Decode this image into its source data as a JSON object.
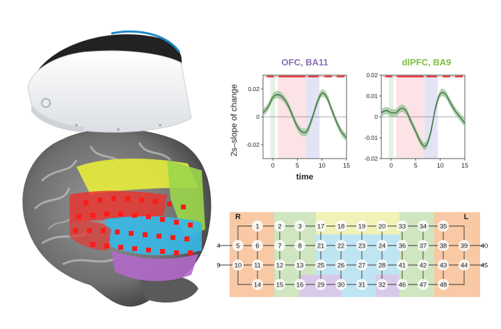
{
  "charts": {
    "ylabel": "2s–slope of change",
    "xlabel": "time",
    "left": {
      "title": "OFC, BA11",
      "title_color": "#8a6fb5",
      "ylim": [
        -0.03,
        0.03
      ],
      "yticks": [
        "0.02",
        "0",
        "-0.02"
      ],
      "ytick_values": [
        0.02,
        0,
        -0.02
      ],
      "xticks": [
        "0",
        "5",
        "10",
        "15"
      ],
      "xtick_values": [
        0,
        5,
        10,
        15
      ]
    },
    "right": {
      "title": "dlPFC, BA9",
      "title_color": "#7fbf3f",
      "ylim": [
        -0.02,
        0.02
      ],
      "yticks": [
        "0.02",
        "0.01",
        "0",
        "-0.01",
        "-0.02"
      ],
      "ytick_values": [
        0.02,
        0.01,
        0,
        -0.01,
        -0.02
      ],
      "xticks": [
        "0",
        "5",
        "10",
        "15"
      ],
      "xtick_values": [
        0,
        5,
        10,
        15
      ]
    }
  },
  "chart_data": [
    {
      "type": "line",
      "title": "OFC, BA11",
      "xlabel": "time",
      "ylabel": "2s–slope of change",
      "xlim": [
        -2,
        15
      ],
      "ylim": [
        -0.03,
        0.03
      ],
      "x": [
        -2,
        -1,
        0,
        1,
        2,
        3,
        4,
        5,
        6,
        7,
        8,
        9,
        10,
        11,
        12,
        13,
        14,
        15
      ],
      "series": [
        {
          "values": [
            0.003,
            0.007,
            0.014,
            0.016,
            0.014,
            0.009,
            0.001,
            -0.007,
            -0.011,
            -0.01,
            -0.001,
            0.01,
            0.017,
            0.014,
            0.005,
            -0.004,
            -0.011,
            -0.015
          ]
        }
      ],
      "shaded_regions": [
        [
          -0.5,
          0.5,
          "#e4f2e4"
        ],
        [
          1,
          6.8,
          "#fbe3e6"
        ],
        [
          6.8,
          9.5,
          "#e2e4f6"
        ]
      ],
      "significance_bar_color": "#e63a3a"
    },
    {
      "type": "line",
      "title": "dlPFC, BA9",
      "xlabel": "",
      "ylabel": "",
      "xlim": [
        -2,
        15
      ],
      "ylim": [
        -0.02,
        0.02
      ],
      "x": [
        -2,
        -1,
        0,
        1,
        2,
        3,
        4,
        5,
        6,
        7,
        8,
        9,
        10,
        11,
        12,
        13,
        14,
        15
      ],
      "series": [
        {
          "values": [
            0.002,
            0.003,
            0.002,
            0.002,
            0.004,
            0.003,
            -0.002,
            -0.007,
            -0.012,
            -0.014,
            -0.008,
            0.004,
            0.011,
            0.011,
            0.007,
            0.003,
            0.0,
            -0.003
          ]
        }
      ],
      "shaded_regions": [
        [
          -0.5,
          0.5,
          "#e4f2e4"
        ],
        [
          1,
          6.8,
          "#fbe3e6"
        ],
        [
          6.8,
          9.5,
          "#e2e4f6"
        ]
      ],
      "significance_bar_color": "#e63a3a"
    }
  ],
  "layout": {
    "side_left": "R",
    "side_right": "L",
    "rows": [
      [
        "1",
        "2",
        "3",
        "17",
        "18",
        "19",
        "20",
        "33",
        "34",
        "35"
      ],
      [
        "4",
        "5",
        "6",
        "7",
        "8",
        "21",
        "22",
        "23",
        "24",
        "36",
        "37",
        "38",
        "39",
        "40"
      ],
      [
        "9",
        "10",
        "11",
        "12",
        "13",
        "25",
        "26",
        "27",
        "28",
        "41",
        "42",
        "43",
        "44",
        "45"
      ],
      [
        "14",
        "15",
        "16",
        "29",
        "30",
        "31",
        "32",
        "46",
        "47",
        "48"
      ]
    ]
  },
  "colors": {
    "orange": "#f8c9a4",
    "green": "#cfe6c0",
    "yellow": "#f0f2b8",
    "cyan": "#bfe4f2",
    "purple": "#d9c9e8",
    "trace": "#3f6b3f",
    "band": "#8fbf8f"
  }
}
